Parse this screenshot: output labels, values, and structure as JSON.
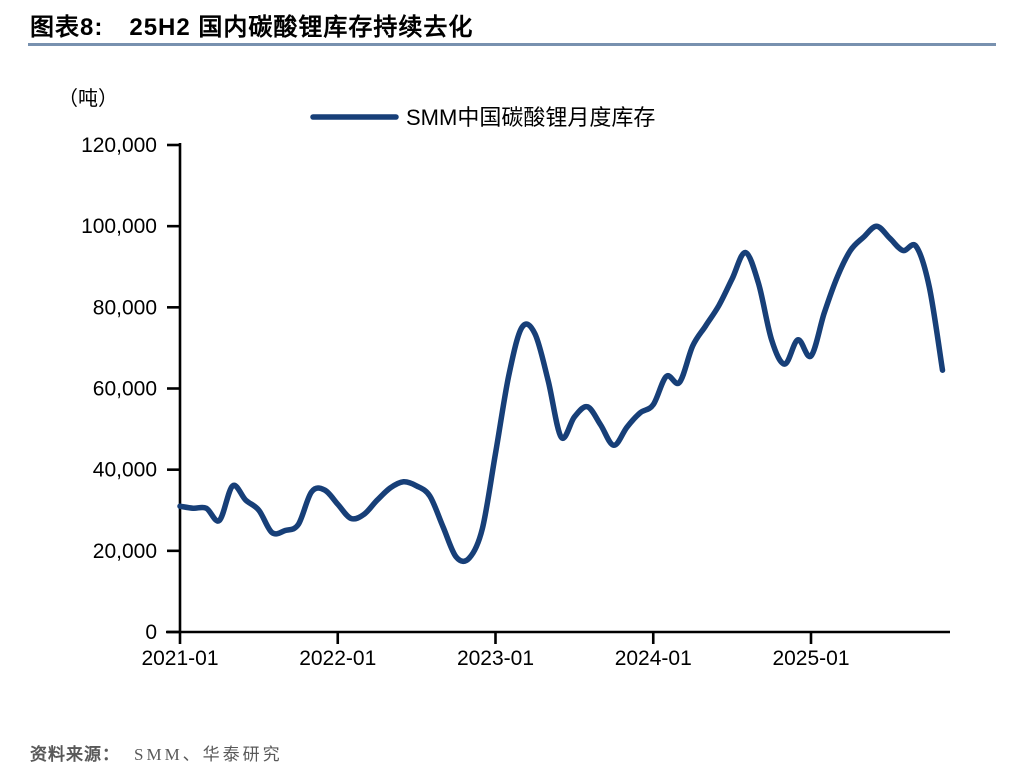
{
  "figure": {
    "label": "图表8:",
    "title": "25H2 国内碳酸锂库存持续去化"
  },
  "footer": {
    "source_label": "资料来源：",
    "source_text": "SMM、华泰研究"
  },
  "chart_data": {
    "type": "line",
    "title": "25H2 国内碳酸锂库存持续去化",
    "unit_label": "（吨）",
    "legend": [
      "SMM中国碳酸锂月度库存"
    ],
    "legend_position": "top-center",
    "grid": false,
    "line_color": "#173f78",
    "axis_color": "#000000",
    "ylim": [
      0,
      120000
    ],
    "y_ticks": [
      0,
      20000,
      40000,
      60000,
      80000,
      100000,
      120000
    ],
    "y_tick_labels": [
      "0",
      "20,000",
      "40,000",
      "60,000",
      "80,000",
      "100,000",
      "120,000"
    ],
    "x_tick_labels": [
      "2021-01",
      "2022-01",
      "2023-01",
      "2024-01",
      "2025-01"
    ],
    "x": [
      "2021-01",
      "2021-02",
      "2021-03",
      "2021-04",
      "2021-05",
      "2021-06",
      "2021-07",
      "2021-08",
      "2021-09",
      "2021-10",
      "2021-11",
      "2021-12",
      "2022-01",
      "2022-02",
      "2022-03",
      "2022-04",
      "2022-05",
      "2022-06",
      "2022-07",
      "2022-08",
      "2022-09",
      "2022-10",
      "2022-11",
      "2022-12",
      "2023-01",
      "2023-02",
      "2023-03",
      "2023-04",
      "2023-05",
      "2023-06",
      "2023-07",
      "2023-08",
      "2023-09",
      "2023-10",
      "2023-11",
      "2023-12",
      "2024-01",
      "2024-02",
      "2024-03",
      "2024-04",
      "2024-05",
      "2024-06",
      "2024-07",
      "2024-08",
      "2024-09",
      "2024-10",
      "2024-11",
      "2024-12",
      "2025-01",
      "2025-02",
      "2025-03",
      "2025-04",
      "2025-05",
      "2025-06",
      "2025-07",
      "2025-08",
      "2025-09",
      "2025-10",
      "2025-11"
    ],
    "series": [
      {
        "name": "SMM中国碳酸锂月度库存",
        "values": [
          31000,
          30500,
          30500,
          27500,
          36000,
          32500,
          30000,
          24500,
          25000,
          26500,
          34500,
          35000,
          31500,
          28000,
          29000,
          32500,
          35500,
          37000,
          36000,
          33500,
          26000,
          18500,
          18200,
          25500,
          44000,
          63000,
          75000,
          73500,
          62000,
          48000,
          53000,
          55500,
          51000,
          46000,
          50500,
          54000,
          56000,
          63000,
          61500,
          70500,
          75500,
          80500,
          87000,
          93500,
          86000,
          72000,
          66000,
          72000,
          68000,
          78500,
          87500,
          94000,
          97300,
          100000,
          97000,
          94000,
          95000,
          85000,
          64500
        ]
      }
    ]
  }
}
